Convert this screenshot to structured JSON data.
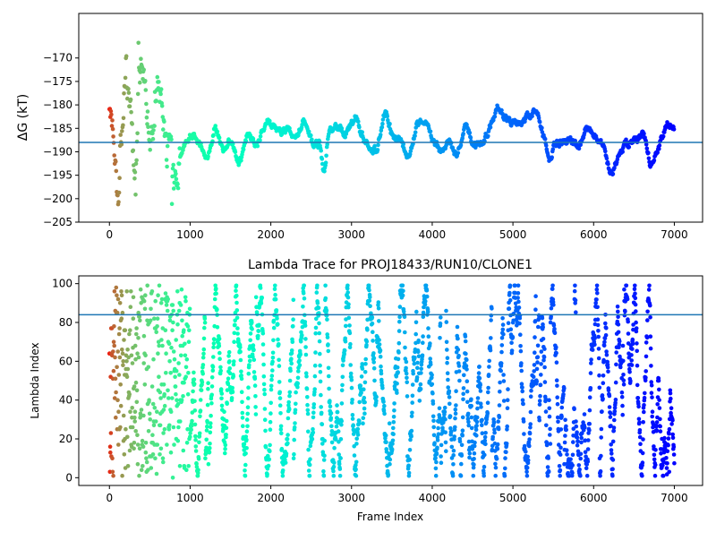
{
  "chart_data": [
    {
      "type": "scatter",
      "title": "",
      "xlabel": "",
      "ylabel": "ΔG (kT)",
      "xlim": [
        -380,
        7350
      ],
      "ylim": [
        -205,
        -160.5
      ],
      "xticks": [
        0,
        1000,
        2000,
        3000,
        4000,
        5000,
        6000,
        7000
      ],
      "yticks": [
        -205,
        -200,
        -195,
        -190,
        -185,
        -180,
        -175,
        -170
      ],
      "hline": -188,
      "colormap": "rainbow-reversed",
      "trace_anchors": [
        [
          0,
          -180
        ],
        [
          100,
          -203
        ],
        [
          200,
          -169
        ],
        [
          300,
          -196
        ],
        [
          400,
          -170
        ],
        [
          500,
          -186
        ],
        [
          600,
          -177
        ],
        [
          700,
          -188
        ],
        [
          800,
          -193
        ],
        [
          900,
          -190
        ],
        [
          1000,
          -186
        ],
        [
          1100,
          -188
        ],
        [
          1200,
          -192
        ],
        [
          1300,
          -184
        ],
        [
          1400,
          -190
        ],
        [
          1500,
          -187
        ],
        [
          1600,
          -193
        ],
        [
          1700,
          -186
        ],
        [
          1800,
          -189
        ],
        [
          1900,
          -185
        ],
        [
          1950,
          -183
        ],
        [
          2000,
          -184
        ],
        [
          2100,
          -186
        ],
        [
          2200,
          -185
        ],
        [
          2300,
          -188
        ],
        [
          2400,
          -183
        ],
        [
          2500,
          -188
        ],
        [
          2600,
          -188
        ],
        [
          2650,
          -196
        ],
        [
          2700,
          -186
        ],
        [
          2800,
          -184
        ],
        [
          2900,
          -186
        ],
        [
          3000,
          -184
        ],
        [
          3050,
          -182
        ],
        [
          3100,
          -186
        ],
        [
          3200,
          -189
        ],
        [
          3300,
          -190
        ],
        [
          3400,
          -181
        ],
        [
          3500,
          -187
        ],
        [
          3600,
          -188
        ],
        [
          3700,
          -191
        ],
        [
          3800,
          -184
        ],
        [
          3900,
          -183
        ],
        [
          4000,
          -188
        ],
        [
          4100,
          -190
        ],
        [
          4200,
          -188
        ],
        [
          4300,
          -191
        ],
        [
          4400,
          -183
        ],
        [
          4500,
          -189
        ],
        [
          4600,
          -188
        ],
        [
          4700,
          -185
        ],
        [
          4800,
          -180
        ],
        [
          4900,
          -183
        ],
        [
          5000,
          -184
        ],
        [
          5100,
          -184
        ],
        [
          5200,
          -182
        ],
        [
          5300,
          -182
        ],
        [
          5400,
          -189
        ],
        [
          5450,
          -193
        ],
        [
          5500,
          -188
        ],
        [
          5600,
          -188
        ],
        [
          5700,
          -187
        ],
        [
          5800,
          -190
        ],
        [
          5900,
          -185
        ],
        [
          6000,
          -186
        ],
        [
          6100,
          -188
        ],
        [
          6200,
          -195
        ],
        [
          6300,
          -191
        ],
        [
          6400,
          -188
        ],
        [
          6500,
          -188
        ],
        [
          6600,
          -186
        ],
        [
          6700,
          -193
        ],
        [
          6800,
          -189
        ],
        [
          6900,
          -184
        ],
        [
          7000,
          -185
        ]
      ]
    },
    {
      "type": "scatter",
      "title": "Lambda Trace for PROJ18433/RUN10/CLONE1",
      "xlabel": "Frame Index",
      "ylabel": "Lambda Index",
      "xlim": [
        -380,
        7350
      ],
      "ylim": [
        -4,
        104
      ],
      "xticks": [
        0,
        1000,
        2000,
        3000,
        4000,
        5000,
        6000,
        7000
      ],
      "yticks": [
        0,
        20,
        40,
        60,
        80,
        100
      ],
      "hline": 84,
      "colormap": "rainbow-reversed",
      "frame_count": 7000,
      "lambda_range": [
        0,
        99
      ]
    }
  ],
  "colors": {
    "hline": "#1f77b4",
    "axes": "#000000",
    "background": "#ffffff"
  }
}
